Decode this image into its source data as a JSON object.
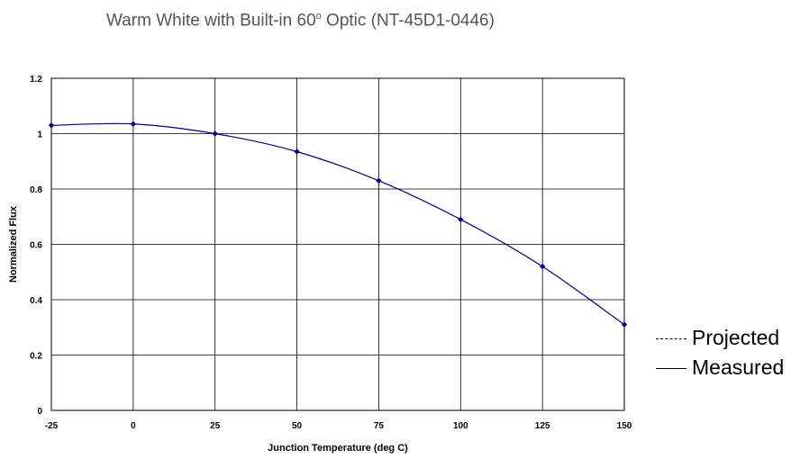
{
  "chart_data": {
    "type": "line",
    "title_main": "Warm White with Built-in 60",
    "title_degree": "o",
    "title_rest": " Optic (NT-45D1-0446)",
    "xlabel": "Junction Temperature (deg C)",
    "ylabel": "Normalized Flux",
    "xlim": [
      -25,
      150
    ],
    "ylim": [
      0,
      1.2
    ],
    "x_ticks": [
      "-25",
      "0",
      "25",
      "50",
      "75",
      "100",
      "125",
      "150"
    ],
    "y_ticks": [
      "0",
      "0.2",
      "0.4",
      "0.6",
      "0.8",
      "1",
      "1.2"
    ],
    "grid": true,
    "series": [
      {
        "x": [
          -25,
          0,
          25,
          50,
          75,
          100,
          125,
          150
        ],
        "values": [
          1.03,
          1.035,
          1.0,
          0.935,
          0.83,
          0.69,
          0.52,
          0.31
        ],
        "color": "#000080",
        "marker": "diamond"
      }
    ],
    "legend": {
      "placement": "right",
      "entries": [
        {
          "label": "Projected",
          "swatch": "----"
        },
        {
          "label": "Measured",
          "swatch": "solid"
        }
      ]
    }
  }
}
